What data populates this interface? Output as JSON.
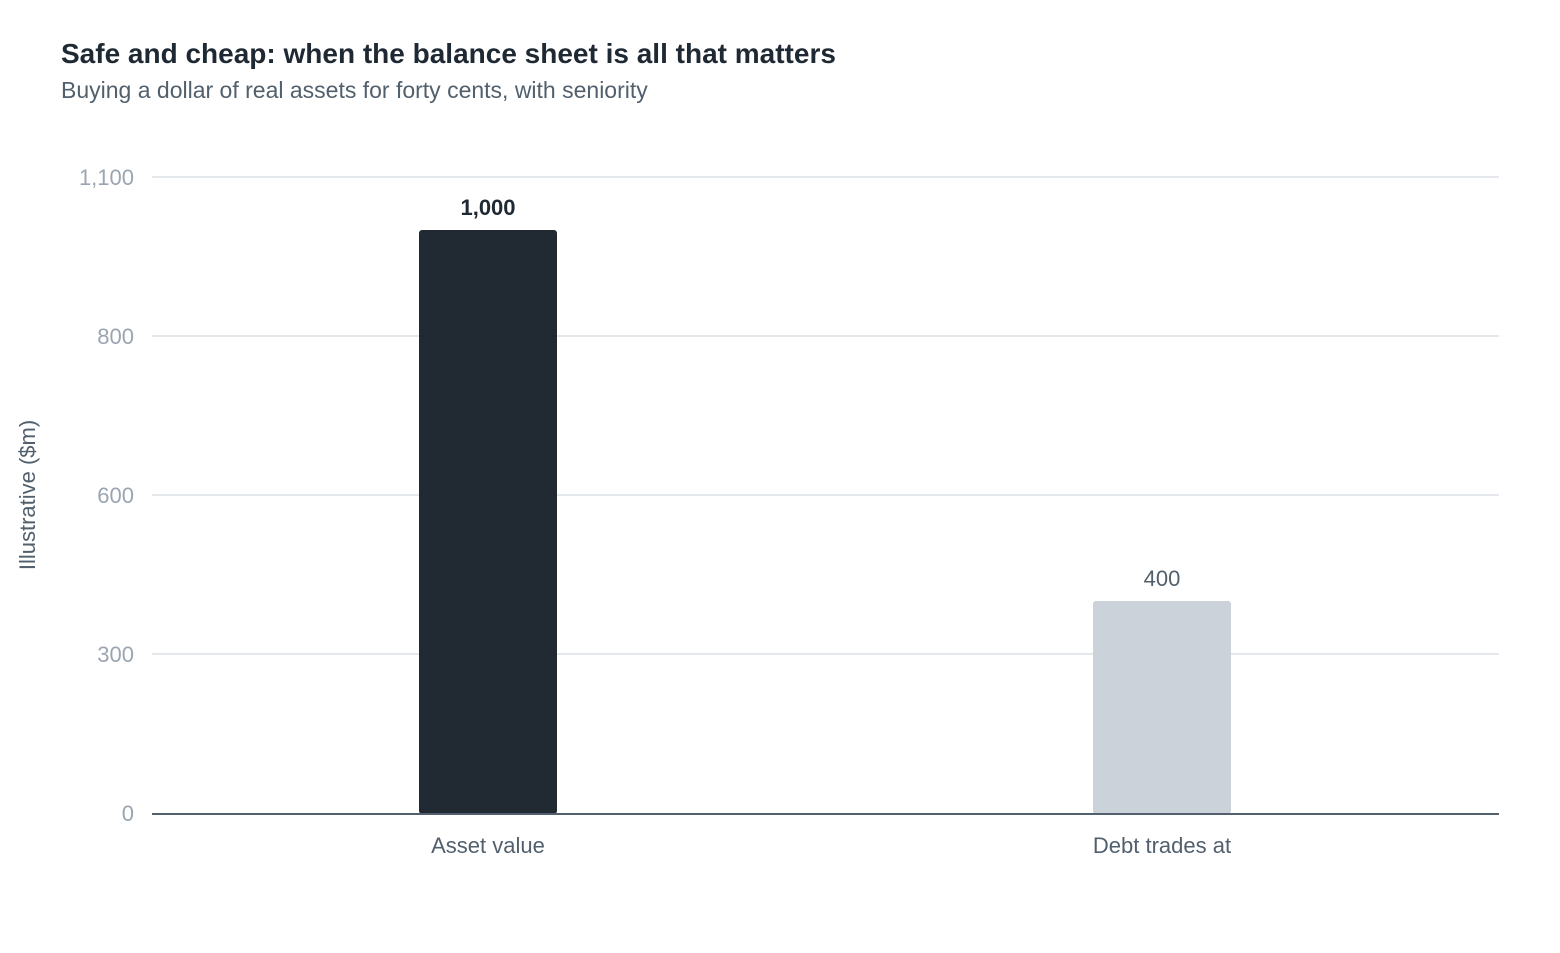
{
  "chart_data": {
    "type": "bar",
    "title": "Safe and cheap: when the balance sheet is all that matters",
    "subtitle": "Buying a dollar of real assets for forty cents, with seniority",
    "xlabel": "",
    "ylabel": "Illustrative ($m)",
    "categories": [
      "Asset value",
      "Debt trades at"
    ],
    "values": [
      1000,
      400
    ],
    "data_labels": [
      "1,000",
      "400"
    ],
    "y_ticks": [
      0,
      300,
      600,
      800,
      1100
    ],
    "y_tick_labels": [
      "0",
      "300",
      "600",
      "800",
      "1,100"
    ],
    "ylim": [
      0,
      1100
    ],
    "grid": true,
    "legend": "none",
    "colors": {
      "highlight_bar": "#212a33",
      "muted_bar": "#ccd2da",
      "highlight_label": "#1f2933",
      "muted_label": "#52606d",
      "gridline": "#e4e7eb",
      "baseline": "#52606d"
    }
  }
}
